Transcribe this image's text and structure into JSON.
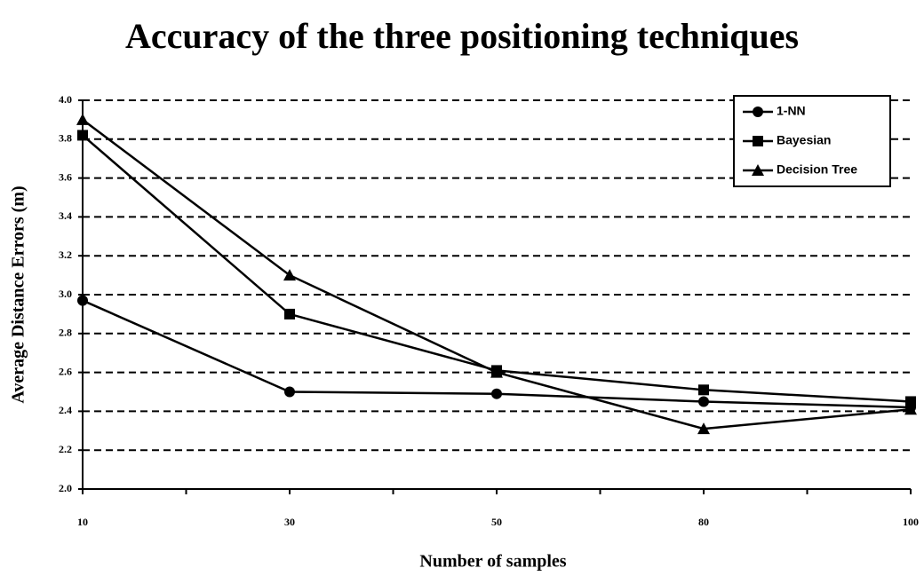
{
  "chart_data": {
    "type": "line",
    "title": "Accuracy of the three positioning techniques",
    "x_label": "Number of samples",
    "y_label": "Average Distance Errors (m)",
    "categories": [
      "10",
      "30",
      "50",
      "80",
      "100"
    ],
    "series": [
      {
        "name": "1-NN",
        "color": "#000000",
        "marker": "circle",
        "values": [
          2.97,
          2.5,
          2.49,
          2.45,
          2.42
        ]
      },
      {
        "name": "Bayesian",
        "color": "#000000",
        "marker": "square",
        "values": [
          3.82,
          2.9,
          2.61,
          2.51,
          2.45
        ]
      },
      {
        "name": "Decision Tree",
        "color": "#000000",
        "marker": "triangle",
        "values": [
          3.9,
          3.1,
          2.6,
          2.31,
          2.41
        ]
      }
    ],
    "ylim": [
      2.0,
      4.0
    ],
    "yticks": [
      {
        "value": 2,
        "label": "2.0"
      },
      2.2,
      2.4,
      2.6,
      2.8,
      {
        "value": 3,
        "label": "3.0"
      },
      3.2,
      3.4,
      3.6,
      3.8,
      {
        "value": 4,
        "label": "4.0"
      }
    ],
    "grid": true,
    "legend": "top-right"
  }
}
